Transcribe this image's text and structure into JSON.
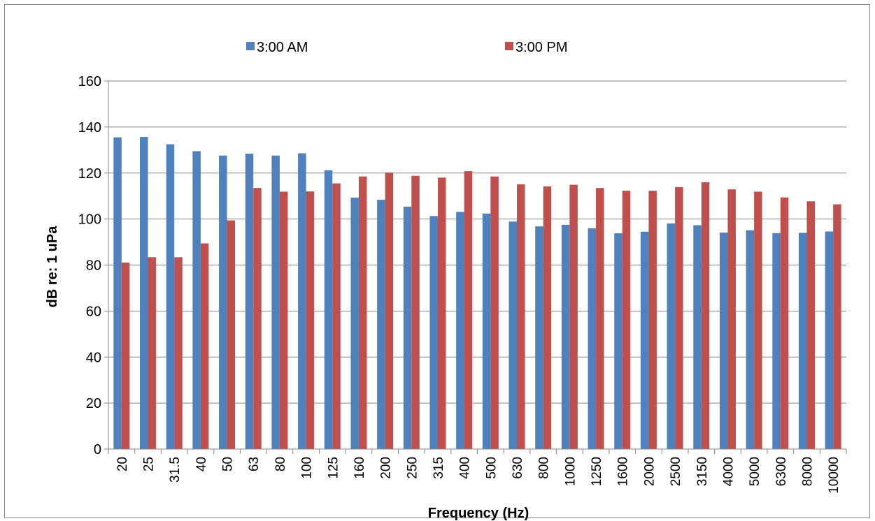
{
  "chart_data": {
    "type": "bar",
    "title": "",
    "xlabel": "Frequency (Hz)",
    "ylabel": "dB re: 1 uPa",
    "ylim": [
      0,
      160
    ],
    "yticks": [
      0,
      20,
      40,
      60,
      80,
      100,
      120,
      140,
      160
    ],
    "grid": "horizontal",
    "legend_position": "top",
    "categories": [
      "20",
      "25",
      "31.5",
      "40",
      "50",
      "63",
      "80",
      "100",
      "125",
      "160",
      "200",
      "250",
      "315",
      "400",
      "500",
      "630",
      "800",
      "1000",
      "1250",
      "1600",
      "2000",
      "2500",
      "3150",
      "4000",
      "5000",
      "6300",
      "8000",
      "10000"
    ],
    "series": [
      {
        "name": "3:00 AM",
        "color": "#4f81bd",
        "values": [
          135.5,
          135.7,
          132.5,
          129.5,
          127.6,
          128.4,
          127.6,
          128.6,
          121.2,
          109.3,
          108.4,
          105.4,
          101.3,
          103.1,
          102.4,
          98.9,
          96.8,
          97.5,
          96.0,
          93.8,
          94.5,
          98.1,
          97.3,
          94.1,
          95.1,
          93.9,
          94.0,
          94.6
        ]
      },
      {
        "name": "3:00 PM",
        "color": "#c0504d",
        "values": [
          81.1,
          83.4,
          83.4,
          89.4,
          99.4,
          113.5,
          111.9,
          112.0,
          115.5,
          118.5,
          120.2,
          118.8,
          118.0,
          120.8,
          118.5,
          115.1,
          114.2,
          114.9,
          113.5,
          112.3,
          112.3,
          113.9,
          116.0,
          112.9,
          111.9,
          109.4,
          107.7,
          106.4
        ]
      }
    ]
  }
}
